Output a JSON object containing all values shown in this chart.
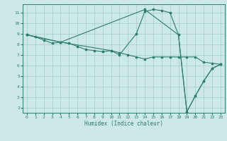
{
  "title": "",
  "xlabel": "Humidex (Indice chaleur)",
  "bg_color": "#cce8e8",
  "line_color": "#2e7d6e",
  "grid_color": "#aacece",
  "xlim": [
    -0.5,
    23.5
  ],
  "ylim": [
    1.5,
    11.8
  ],
  "xticks": [
    0,
    1,
    2,
    3,
    4,
    5,
    6,
    7,
    8,
    9,
    10,
    11,
    12,
    13,
    14,
    15,
    16,
    17,
    18,
    19,
    20,
    21,
    22,
    23
  ],
  "yticks": [
    2,
    3,
    4,
    5,
    6,
    7,
    8,
    9,
    10,
    11
  ],
  "line1_x": [
    0,
    1,
    2,
    3,
    4,
    5,
    6,
    7,
    8,
    9,
    10,
    11,
    12,
    13,
    14,
    15,
    16,
    17,
    18,
    19,
    20,
    21,
    22,
    23
  ],
  "line1_y": [
    8.9,
    8.7,
    8.4,
    8.1,
    8.2,
    8.1,
    7.8,
    7.5,
    7.4,
    7.3,
    7.4,
    7.2,
    7.0,
    6.8,
    6.6,
    6.8,
    6.8,
    6.8,
    6.8,
    6.8,
    6.8,
    6.3,
    6.2,
    6.1
  ],
  "line2_x": [
    0,
    4,
    10,
    11,
    13,
    14,
    15,
    16,
    17,
    18,
    19,
    20,
    21,
    22,
    23
  ],
  "line2_y": [
    8.9,
    8.2,
    7.4,
    7.0,
    9.0,
    11.1,
    11.3,
    11.2,
    11.0,
    8.9,
    1.6,
    3.1,
    4.5,
    5.7,
    6.1
  ],
  "line3_x": [
    0,
    4,
    14,
    18,
    19,
    20,
    21,
    22,
    23
  ],
  "line3_y": [
    8.9,
    8.2,
    11.3,
    8.9,
    1.6,
    3.1,
    4.5,
    5.7,
    6.1
  ]
}
